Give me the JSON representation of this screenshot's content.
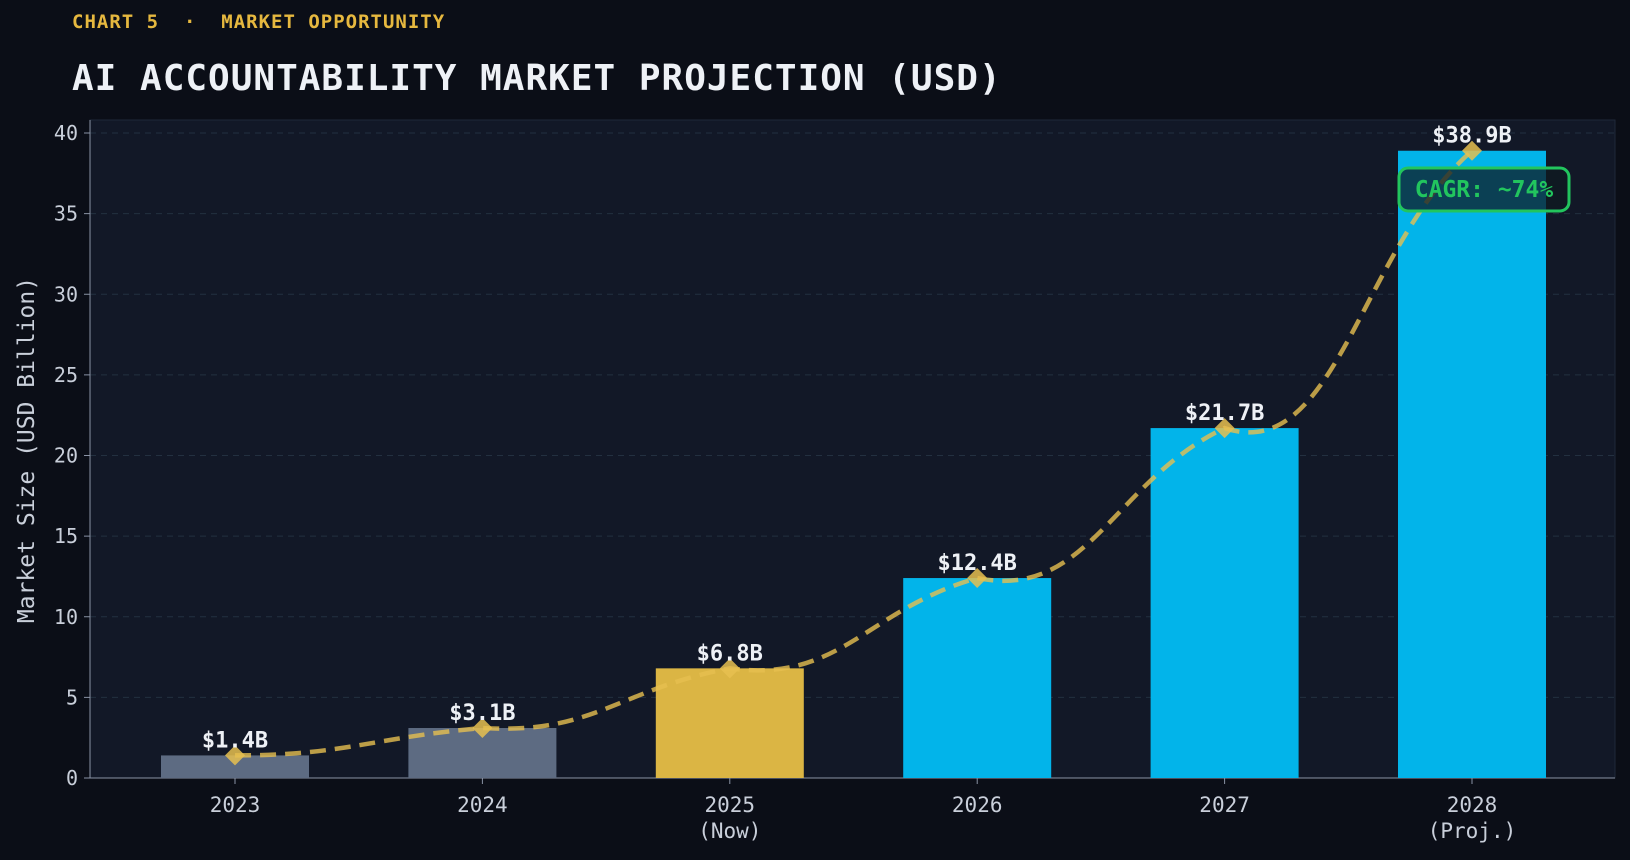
{
  "header": {
    "kicker": "CHART 5  ·  MARKET OPPORTUNITY",
    "title": "AI ACCOUNTABILITY MARKET PROJECTION (USD)"
  },
  "chart_data": {
    "type": "bar",
    "title": "AI ACCOUNTABILITY MARKET PROJECTION (USD)",
    "xlabel": "",
    "ylabel": "Market Size (USD Billion)",
    "ylim": [
      0,
      40
    ],
    "yticks": [
      0,
      5,
      10,
      15,
      20,
      25,
      30,
      35,
      40
    ],
    "grid": true,
    "categories": [
      "2023",
      "2024",
      "2025",
      "2026",
      "2027",
      "2028"
    ],
    "category_sublabels": [
      "",
      "",
      "(Now)",
      "",
      "",
      "(Proj.)"
    ],
    "values": [
      1.4,
      3.1,
      6.8,
      12.4,
      21.7,
      38.9
    ],
    "value_labels": [
      "$1.4B",
      "$3.1B",
      "$6.8B",
      "$12.4B",
      "$21.7B",
      "$38.9B"
    ],
    "bar_colors": [
      "#5d6b82",
      "#5d6b82",
      "#dbb544",
      "#02b4ea",
      "#02b4ea",
      "#02b4ea"
    ],
    "trend_line": {
      "style": "dashed",
      "marker": "diamond",
      "color": "#e6bf50",
      "values": [
        1.4,
        3.1,
        6.8,
        12.4,
        21.7,
        38.9
      ]
    },
    "annotation": {
      "text": "CAGR: ~74%",
      "color": "#22c55e"
    }
  }
}
